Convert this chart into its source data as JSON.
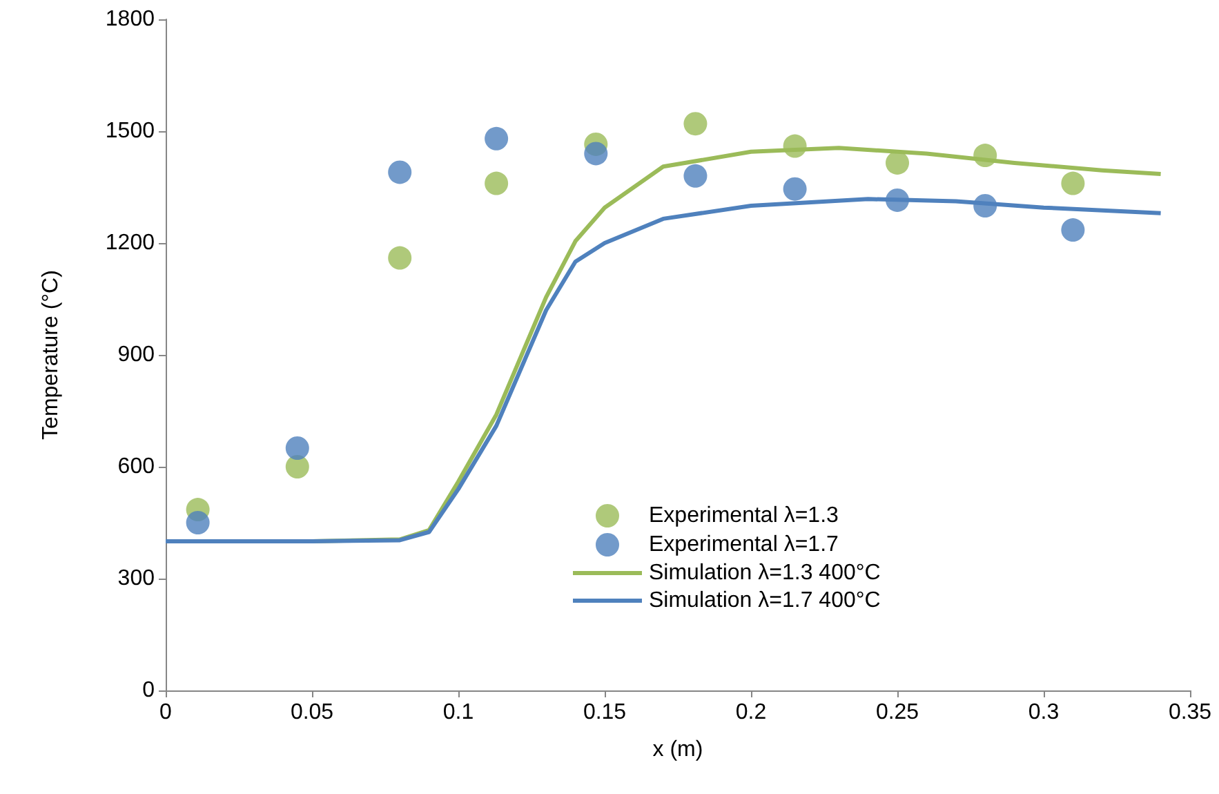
{
  "chart_data": {
    "type": "scatter",
    "xlabel": "x (m)",
    "ylabel": "Temperature (°C)",
    "xlim": [
      0,
      0.35
    ],
    "xticks": [
      0,
      0.05,
      0.1,
      0.15,
      0.2,
      0.25,
      0.3,
      0.35
    ],
    "ylim": [
      0,
      1800
    ],
    "yticks": [
      0,
      300,
      600,
      900,
      1200,
      1500,
      1800
    ],
    "grid": false,
    "legend": "bottom",
    "marker": "circle",
    "series": [
      {
        "name": "Experimental λ=1.3",
        "color": "#9bbb59",
        "x": [
          0.011,
          0.045,
          0.08,
          0.113,
          0.147,
          0.181,
          0.215,
          0.25,
          0.28,
          0.31
        ],
        "values": [
          485,
          600,
          1160,
          1360,
          1465,
          1520,
          1460,
          1415,
          1435,
          1360
        ]
      },
      {
        "name": "Experimental λ=1.7",
        "color": "#4f81bd",
        "x": [
          0.011,
          0.045,
          0.08,
          0.113,
          0.147,
          0.181,
          0.215,
          0.25,
          0.28,
          0.31
        ],
        "values": [
          450,
          650,
          1390,
          1480,
          1440,
          1380,
          1345,
          1315,
          1300,
          1235
        ]
      },
      {
        "name": "Simulation λ=1.3 400°C",
        "type": "line",
        "color": "#9bbb59",
        "marker": "none",
        "x": [
          0,
          0.05,
          0.08,
          0.09,
          0.1,
          0.113,
          0.13,
          0.14,
          0.15,
          0.17,
          0.2,
          0.23,
          0.26,
          0.29,
          0.32,
          0.34
        ],
        "values": [
          400,
          400,
          405,
          430,
          560,
          740,
          1055,
          1205,
          1295,
          1405,
          1445,
          1455,
          1440,
          1415,
          1395,
          1385
        ]
      },
      {
        "name": "Simulation λ=1.7 400°C",
        "type": "line",
        "color": "#4f81bd",
        "marker": "none",
        "x": [
          0,
          0.05,
          0.08,
          0.09,
          0.1,
          0.113,
          0.13,
          0.14,
          0.15,
          0.17,
          0.2,
          0.24,
          0.27,
          0.3,
          0.34
        ],
        "values": [
          400,
          400,
          403,
          425,
          540,
          710,
          1020,
          1150,
          1200,
          1265,
          1300,
          1318,
          1312,
          1295,
          1280
        ]
      }
    ]
  }
}
